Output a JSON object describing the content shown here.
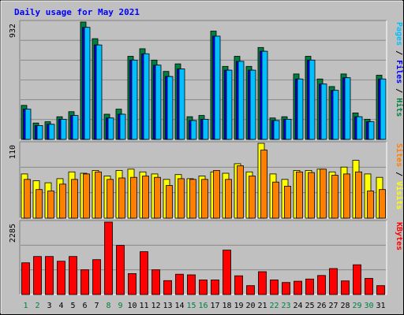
{
  "chart_data": {
    "type": "bar",
    "title": "Daily usage for May 2021",
    "categories": [
      "1",
      "2",
      "3",
      "4",
      "5",
      "6",
      "7",
      "8",
      "9",
      "10",
      "11",
      "12",
      "13",
      "14",
      "15",
      "16",
      "17",
      "18",
      "19",
      "20",
      "21",
      "22",
      "23",
      "24",
      "25",
      "26",
      "27",
      "28",
      "29",
      "30",
      "31"
    ],
    "weekend_days": [
      "1",
      "2",
      "8",
      "9",
      "15",
      "16",
      "22",
      "23",
      "29",
      "30"
    ],
    "panels": [
      {
        "name": "hits-files-pages",
        "axis_max_label": "932",
        "ymax": 932,
        "right_label_parts": [
          {
            "text": "Pages",
            "color": "#00c0ff"
          },
          {
            "text": " / ",
            "color": "#000000"
          },
          {
            "text": "Files",
            "color": "#0000ff"
          },
          {
            "text": " / ",
            "color": "#000000"
          },
          {
            "text": "Hits",
            "color": "#008040"
          }
        ],
        "series": [
          {
            "name": "Hits",
            "color": "#008040",
            "values": [
              270,
              130,
              140,
              180,
              220,
              932,
              800,
              200,
              240,
              660,
              720,
              630,
              540,
              600,
              180,
              190,
              860,
              580,
              660,
              580,
              730,
              170,
              180,
              520,
              660,
              480,
              420,
              520,
              210,
              160,
              510
            ]
          },
          {
            "name": "Files",
            "color": "#0000ff",
            "values": [
              240,
              110,
              120,
              160,
              190,
              890,
              750,
              170,
              200,
              630,
              680,
              590,
              500,
              560,
              150,
              160,
              820,
              550,
              620,
              550,
              700,
              150,
              160,
              480,
              630,
              440,
              390,
              490,
              180,
              140,
              480
            ]
          },
          {
            "name": "Pages",
            "color": "#00c0ff",
            "values": [
              240,
              110,
              120,
              160,
              190,
              890,
              750,
              170,
              200,
              630,
              680,
              590,
              500,
              560,
              150,
              160,
              820,
              550,
              620,
              550,
              700,
              150,
              160,
              480,
              630,
              440,
              390,
              490,
              180,
              140,
              480
            ]
          }
        ]
      },
      {
        "name": "visits-sites",
        "axis_max_label": "110",
        "ymax": 110,
        "right_label_parts": [
          {
            "text": "Sites",
            "color": "#ff8000"
          },
          {
            "text": " / ",
            "color": "#000000"
          },
          {
            "text": "Visits",
            "color": "#ffff00"
          }
        ],
        "series": [
          {
            "name": "Visits",
            "color": "#ffff00",
            "values": [
              65,
              55,
              52,
              58,
              68,
              66,
              70,
              62,
              70,
              72,
              68,
              65,
              57,
              64,
              58,
              62,
              68,
              66,
              80,
              68,
              110,
              65,
              57,
              70,
              70,
              72,
              68,
              75,
              85,
              65,
              60
            ]
          },
          {
            "name": "Sites",
            "color": "#ff8000",
            "values": [
              57,
              42,
              40,
              50,
              57,
              65,
              68,
              57,
              59,
              60,
              62,
              60,
              48,
              58,
              57,
              57,
              70,
              57,
              77,
              62,
              100,
              53,
              47,
              68,
              67,
              72,
              63,
              65,
              68,
              40,
              42
            ]
          }
        ]
      },
      {
        "name": "kbytes",
        "axis_max_label": "2285",
        "ymax": 2285,
        "right_label_parts": [
          {
            "text": "KBytes",
            "color": "#ff0000"
          }
        ],
        "series": [
          {
            "name": "KBytes",
            "color": "#ff0000",
            "values": [
              1000,
              1200,
              1200,
              1050,
              1200,
              780,
              1100,
              2285,
              1550,
              660,
              1350,
              780,
              440,
              640,
              620,
              460,
              460,
              1400,
              590,
              280,
              720,
              460,
              380,
              420,
              490,
              600,
              820,
              430,
              940,
              510,
              280
            ]
          }
        ]
      }
    ]
  }
}
